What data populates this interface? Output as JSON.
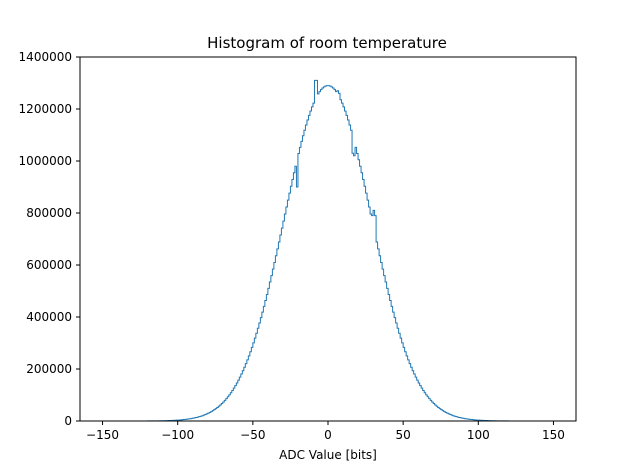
{
  "chart_data": {
    "type": "histogram",
    "title": "Histogram of room temperature",
    "xlabel": "ADC Value [bits]",
    "ylabel": "",
    "xlim": [
      -165,
      165
    ],
    "ylim": [
      0,
      1400000
    ],
    "x_ticks": [
      -150,
      -100,
      -50,
      0,
      50,
      100,
      150
    ],
    "y_ticks": [
      0,
      200000,
      400000,
      600000,
      800000,
      1000000,
      1200000,
      1400000
    ],
    "x_tick_labels": [
      "−150",
      "−100",
      "−50",
      "0",
      "50",
      "100",
      "150"
    ],
    "y_tick_labels": [
      "0",
      "200000",
      "400000",
      "600000",
      "800000",
      "1000000",
      "1200000",
      "1400000"
    ],
    "grid": false,
    "line_color": "#1f77b4",
    "bins": {
      "start": -150,
      "end": 150,
      "bin_width": 1,
      "distribution": "gaussian",
      "peak_count": 1290000,
      "center": 0,
      "sigma": 29,
      "anomalies": [
        {
          "x": -9,
          "count": 1310000
        },
        {
          "x": -8,
          "count": 1310000
        },
        {
          "x": 6,
          "count": 1270000
        },
        {
          "x": 7,
          "count": 1260000
        },
        {
          "x": 16,
          "count": 1030000
        },
        {
          "x": 17,
          "count": 1020000
        },
        {
          "x": 29,
          "count": 790000
        },
        {
          "x": 30,
          "count": 810000
        },
        {
          "x": 31,
          "count": 790000
        },
        {
          "x": -21,
          "count": 900000
        }
      ]
    },
    "colors": {
      "series": "#1f77b4",
      "axes": "#000000",
      "background": "#ffffff"
    }
  }
}
